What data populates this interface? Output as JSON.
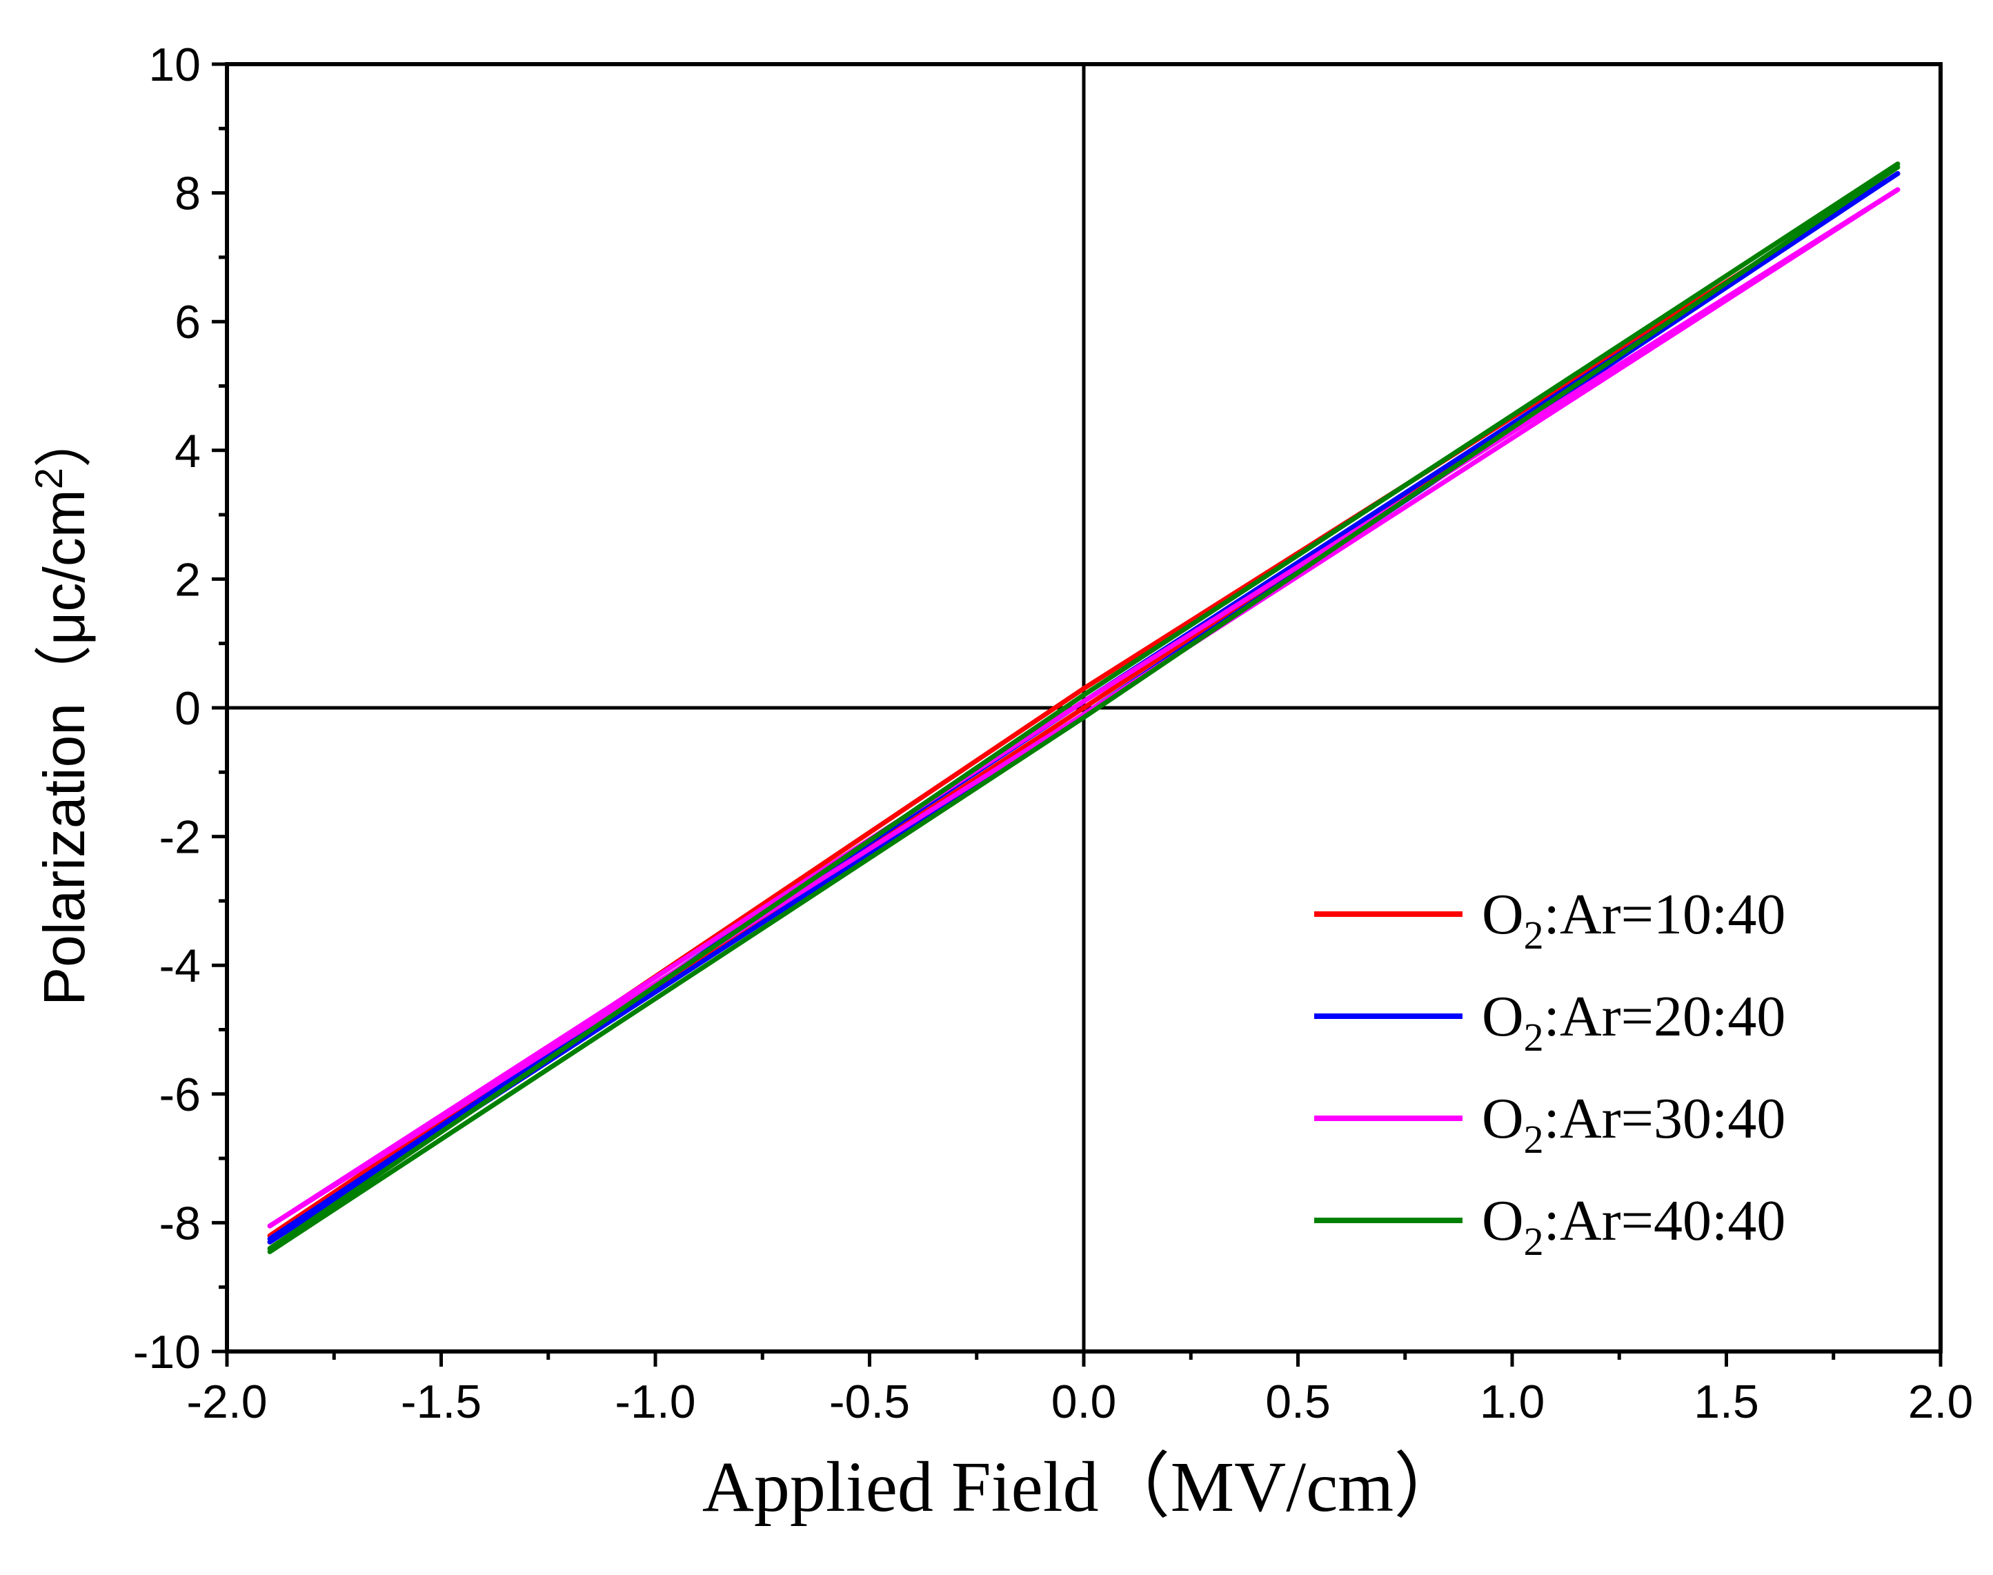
{
  "chart_data": {
    "type": "line",
    "title": "",
    "xlabel": "Applied Field（MV/cm）",
    "ylabel": "Polarization（μc/cm²）",
    "ylabel_parts": {
      "main": "Polarization（μc/cm",
      "sup": "2",
      "end": "）"
    },
    "xlim": [
      -2.0,
      2.0
    ],
    "ylim": [
      -10,
      10
    ],
    "x_ticks": [
      -2.0,
      -1.5,
      -1.0,
      -0.5,
      0.0,
      0.5,
      1.0,
      1.5,
      2.0
    ],
    "x_tick_labels": [
      "-2.0",
      "-1.5",
      "-1.0",
      "-0.5",
      "0.0",
      "0.5",
      "1.0",
      "1.5",
      "2.0"
    ],
    "y_ticks": [
      -10,
      -8,
      -6,
      -4,
      -2,
      0,
      2,
      4,
      6,
      8,
      10
    ],
    "y_tick_labels": [
      "-10",
      "-8",
      "-6",
      "-4",
      "-2",
      "0",
      "2",
      "4",
      "6",
      "8",
      "10"
    ],
    "grid": false,
    "legend_position": "bottom-right",
    "series": [
      {
        "name": "O2:Ar=10:40",
        "label_parts": {
          "pre": "O",
          "sub": "2",
          "post": ":Ar=10:40"
        },
        "color": "#ff0000",
        "upper": {
          "x": [
            -1.9,
            0,
            1.9
          ],
          "y": [
            -8.2,
            0.3,
            8.3
          ]
        },
        "lower": {
          "x": [
            -1.9,
            0,
            1.9
          ],
          "y": [
            -8.3,
            0.0,
            8.3
          ]
        }
      },
      {
        "name": "O2:Ar=20:40",
        "label_parts": {
          "pre": "O",
          "sub": "2",
          "post": ":Ar=20:40"
        },
        "color": "#0000ff",
        "upper": {
          "x": [
            -1.9,
            0,
            1.9
          ],
          "y": [
            -8.25,
            0.1,
            8.3
          ]
        },
        "lower": {
          "x": [
            -1.9,
            0,
            1.9
          ],
          "y": [
            -8.3,
            -0.1,
            8.3
          ]
        }
      },
      {
        "name": "O2:Ar=30:40",
        "label_parts": {
          "pre": "O",
          "sub": "2",
          "post": ":Ar=30:40"
        },
        "color": "#ff00ff",
        "upper": {
          "x": [
            -1.9,
            0,
            1.9
          ],
          "y": [
            -8.05,
            0.1,
            8.05
          ]
        },
        "lower": {
          "x": [
            -1.9,
            0,
            1.9
          ],
          "y": [
            -8.05,
            -0.1,
            8.05
          ]
        }
      },
      {
        "name": "O2:Ar=40:40",
        "label_parts": {
          "pre": "O",
          "sub": "2",
          "post": ":Ar=40:40"
        },
        "color": "#008000",
        "upper": {
          "x": [
            -1.9,
            0,
            1.9
          ],
          "y": [
            -8.4,
            0.2,
            8.45
          ]
        },
        "lower": {
          "x": [
            -1.9,
            0,
            1.9
          ],
          "y": [
            -8.45,
            -0.15,
            8.4
          ]
        }
      }
    ]
  }
}
